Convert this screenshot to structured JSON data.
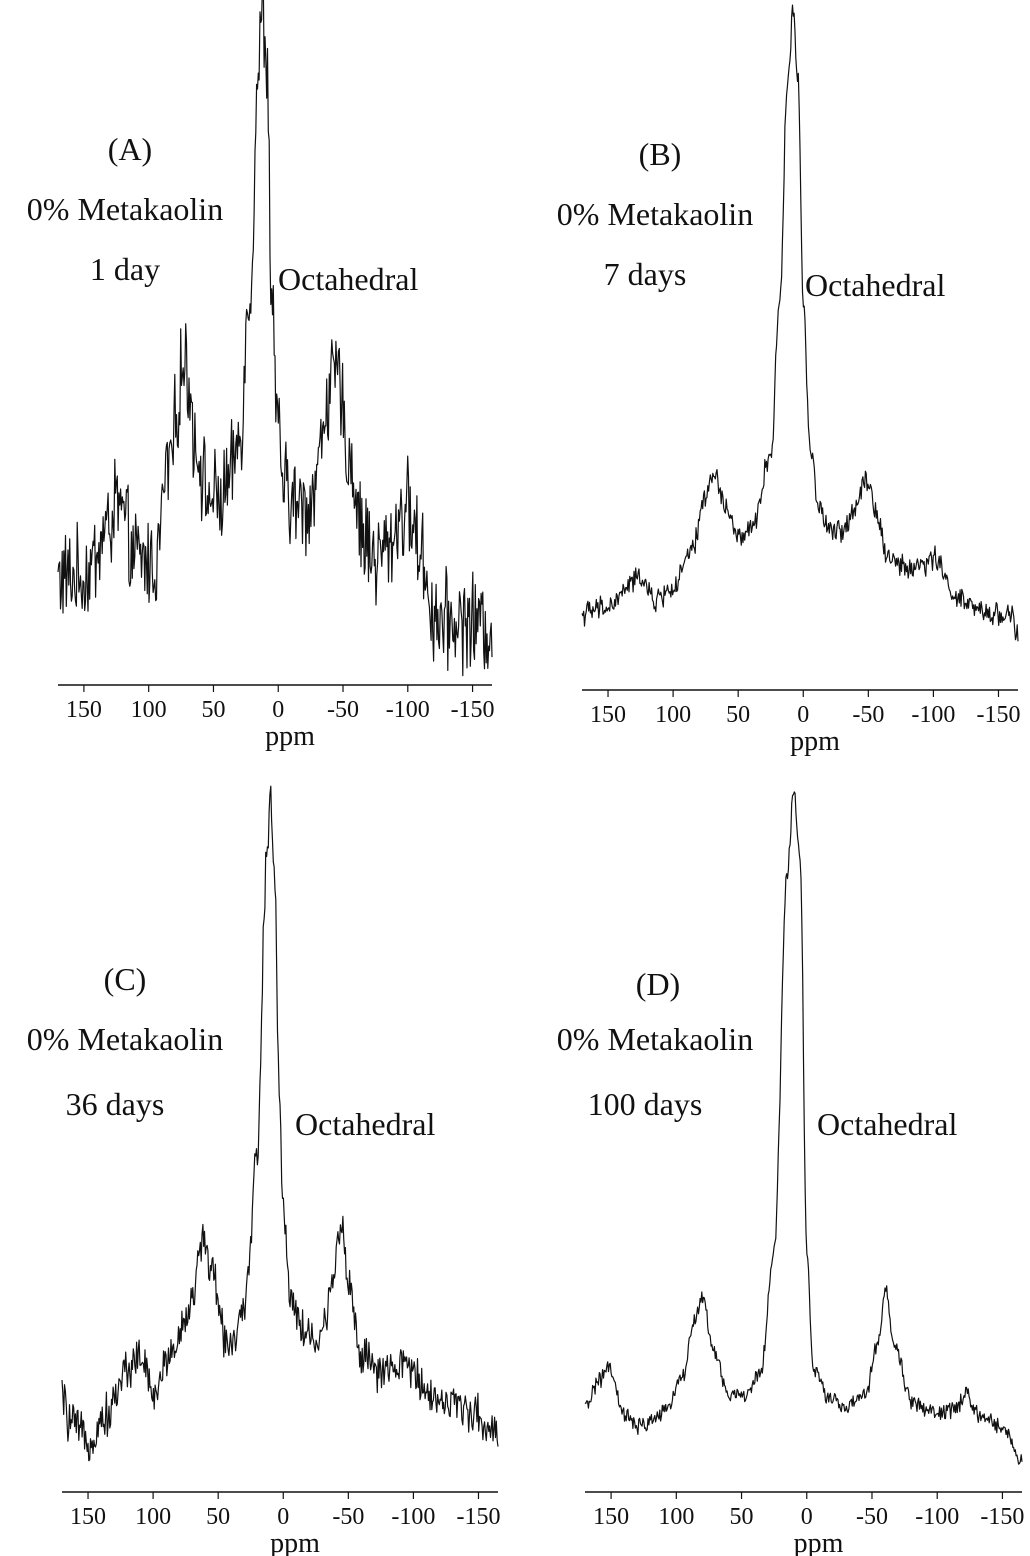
{
  "chart_data": [
    {
      "type": "line",
      "panel_label": "(A)",
      "sample": "0% Metakaolin",
      "age": "1 day",
      "peak_label": "Octahedral",
      "xlabel": "ppm",
      "ylabel": "",
      "x_reversed": true,
      "xlim": [
        170,
        -165
      ],
      "xticks": [
        150,
        100,
        50,
        0,
        -50,
        -100,
        -150
      ],
      "xtick_labels": [
        "150",
        "100",
        "50",
        "0",
        "-50",
        "-100",
        "-150"
      ],
      "y_relative_range": [
        0,
        1
      ],
      "noise": 0.06,
      "grid": false,
      "legend": "none",
      "series": [
        {
          "x": [
            170,
            150,
            130,
            125,
            110,
            95,
            85,
            72,
            62,
            55,
            45,
            38,
            30,
            22,
            15,
            12,
            9,
            5,
            0,
            -5,
            -10,
            -18,
            -25,
            -30,
            -38,
            -45,
            -55,
            -65,
            -75,
            -85,
            -95,
            -100,
            -110,
            -120,
            -130,
            -140,
            -150,
            -165
          ],
          "y": [
            0.1,
            0.1,
            0.18,
            0.22,
            0.13,
            0.12,
            0.28,
            0.44,
            0.3,
            0.23,
            0.22,
            0.25,
            0.32,
            0.55,
            0.92,
            1.0,
            0.92,
            0.55,
            0.32,
            0.24,
            0.22,
            0.21,
            0.22,
            0.27,
            0.39,
            0.42,
            0.29,
            0.17,
            0.13,
            0.15,
            0.2,
            0.21,
            0.14,
            0.04,
            0.03,
            0.03,
            0.03,
            0.02
          ]
        }
      ]
    },
    {
      "type": "line",
      "panel_label": "(B)",
      "sample": "0% Metakaolin",
      "age": "7 days",
      "peak_label": "Octahedral",
      "xlabel": "ppm",
      "ylabel": "",
      "x_reversed": true,
      "xlim": [
        170,
        -165
      ],
      "xticks": [
        150,
        100,
        50,
        0,
        -50,
        -100,
        -150
      ],
      "xtick_labels": [
        "150",
        "100",
        "50",
        "0",
        "-50",
        "-100",
        "-150"
      ],
      "y_relative_range": [
        0,
        1
      ],
      "noise": 0.015,
      "grid": false,
      "legend": "none",
      "series": [
        {
          "x": [
            170,
            150,
            130,
            125,
            115,
            100,
            85,
            75,
            68,
            60,
            50,
            40,
            25,
            18,
            12,
            8,
            4,
            0,
            -5,
            -12,
            -20,
            -30,
            -40,
            -48,
            -55,
            -65,
            -80,
            -95,
            -102,
            -110,
            -120,
            -140,
            -160,
            -165
          ],
          "y": [
            0.05,
            0.06,
            0.1,
            0.11,
            0.07,
            0.09,
            0.15,
            0.24,
            0.27,
            0.22,
            0.17,
            0.18,
            0.3,
            0.55,
            0.9,
            1.0,
            0.9,
            0.55,
            0.32,
            0.22,
            0.18,
            0.18,
            0.22,
            0.27,
            0.22,
            0.14,
            0.12,
            0.13,
            0.14,
            0.1,
            0.07,
            0.05,
            0.05,
            0.01
          ]
        }
      ]
    },
    {
      "type": "line",
      "panel_label": "(C)",
      "sample": "0% Metakaolin",
      "age": "36 days",
      "peak_label": "Octahedral",
      "xlabel": "ppm",
      "ylabel": "",
      "x_reversed": true,
      "xlim": [
        170,
        -165
      ],
      "xticks": [
        150,
        100,
        50,
        0,
        -50,
        -100,
        -150
      ],
      "xtick_labels": [
        "150",
        "100",
        "50",
        "0",
        "-50",
        "-100",
        "-150"
      ],
      "y_relative_range": [
        0,
        1
      ],
      "noise": 0.025,
      "grid": false,
      "legend": "none",
      "series": [
        {
          "x": [
            170,
            165,
            150,
            135,
            120,
            110,
            100,
            85,
            70,
            62,
            55,
            45,
            40,
            30,
            20,
            13,
            10,
            7,
            3,
            0,
            -5,
            -15,
            -25,
            -32,
            -38,
            -45,
            -50,
            -60,
            -75,
            -90,
            -95,
            -105,
            -120,
            -140,
            -160,
            -165
          ],
          "y": [
            0.08,
            0.04,
            0.01,
            0.05,
            0.12,
            0.14,
            0.08,
            0.15,
            0.22,
            0.32,
            0.27,
            0.17,
            0.16,
            0.2,
            0.45,
            0.88,
            1.0,
            0.9,
            0.55,
            0.36,
            0.24,
            0.18,
            0.16,
            0.18,
            0.27,
            0.34,
            0.25,
            0.14,
            0.11,
            0.12,
            0.13,
            0.1,
            0.07,
            0.06,
            0.03,
            0.02
          ]
        }
      ]
    },
    {
      "type": "line",
      "panel_label": "(D)",
      "sample": "0% Metakaolin",
      "age": "100 days",
      "peak_label": "Octahedral",
      "xlabel": "ppm",
      "ylabel": "",
      "x_reversed": true,
      "xlim": [
        170,
        -165
      ],
      "xticks": [
        150,
        100,
        50,
        0,
        -50,
        -100,
        -150
      ],
      "xtick_labels": [
        "150",
        "100",
        "50",
        "0",
        "-50",
        "-100",
        "-150"
      ],
      "y_relative_range": [
        0,
        1
      ],
      "noise": 0.01,
      "grid": false,
      "legend": "none",
      "series": [
        {
          "x": [
            170,
            160,
            152,
            140,
            130,
            110,
            95,
            85,
            80,
            72,
            60,
            45,
            35,
            25,
            15,
            10,
            5,
            0,
            -5,
            -15,
            -30,
            -45,
            -55,
            -60,
            -68,
            -80,
            -100,
            -115,
            -122,
            -130,
            -150,
            -165
          ],
          "y": [
            0.06,
            0.1,
            0.12,
            0.05,
            0.03,
            0.05,
            0.11,
            0.2,
            0.23,
            0.15,
            0.08,
            0.08,
            0.12,
            0.3,
            0.88,
            1.0,
            0.9,
            0.3,
            0.12,
            0.08,
            0.06,
            0.08,
            0.16,
            0.24,
            0.15,
            0.07,
            0.05,
            0.06,
            0.08,
            0.05,
            0.03,
            -0.02
          ]
        }
      ]
    }
  ]
}
